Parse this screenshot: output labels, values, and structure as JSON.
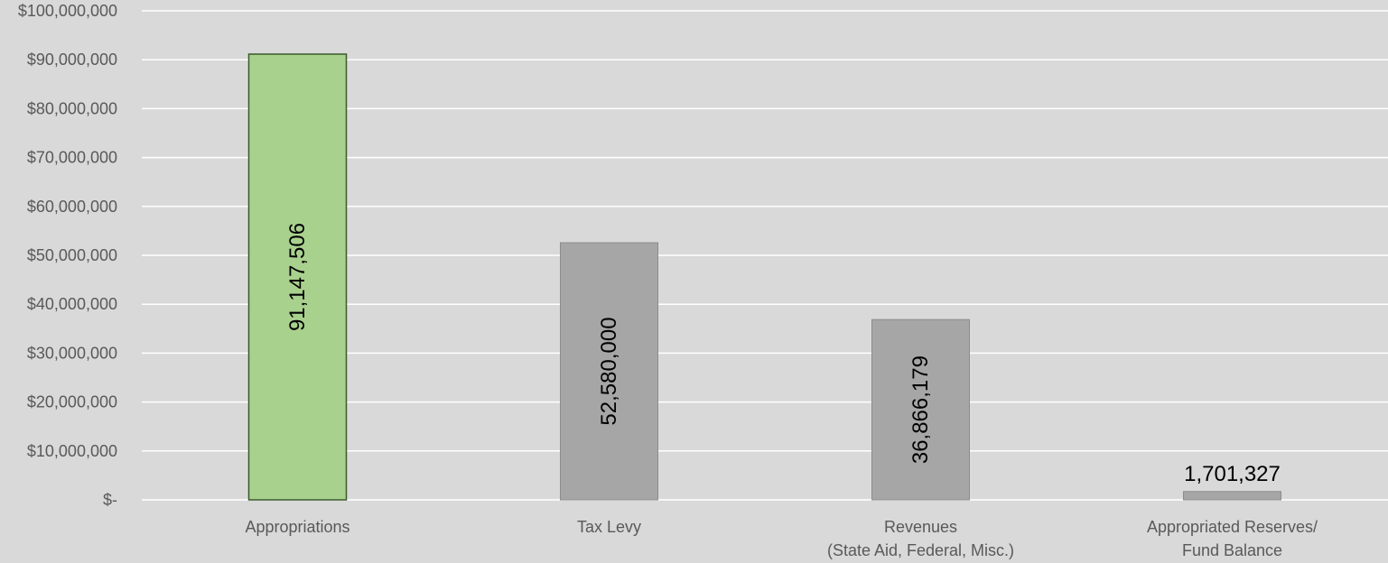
{
  "chart_data": {
    "type": "bar",
    "categories": [
      [
        "Appropriations"
      ],
      [
        "Tax Levy"
      ],
      [
        "Revenues",
        "(State Aid, Federal, Misc.)"
      ],
      [
        "Appropriated Reserves/",
        "Fund Balance"
      ]
    ],
    "values": [
      91147506,
      52580000,
      36866179,
      1701327
    ],
    "data_labels": [
      "91,147,506",
      "52,580,000",
      "36,866,179",
      "1,701,327"
    ],
    "data_label_orientation": [
      "vertical",
      "vertical",
      "vertical",
      "horizontal"
    ],
    "ylim": [
      0,
      100000000
    ],
    "yticks": [
      0,
      10000000,
      20000000,
      30000000,
      40000000,
      50000000,
      60000000,
      70000000,
      80000000,
      90000000,
      100000000
    ],
    "ytick_labels": [
      "$-",
      "$10,000,000",
      "$20,000,000",
      "$30,000,000",
      "$40,000,000",
      "$50,000,000",
      "$60,000,000",
      "$70,000,000",
      "$80,000,000",
      "$90,000,000",
      "$100,000,000"
    ],
    "grid": true,
    "legend": "none",
    "title": "",
    "xlabel": "",
    "ylabel": "",
    "colors": {
      "background": "#d9d9d9",
      "gridline": "#ffffff",
      "highlight_bar": "#a9d18e",
      "highlight_border": "#3a5a2a",
      "default_bar": "#a6a6a6",
      "default_border": "#8c8c8c"
    },
    "bar_colors": [
      "highlight",
      "default",
      "default",
      "default"
    ]
  }
}
